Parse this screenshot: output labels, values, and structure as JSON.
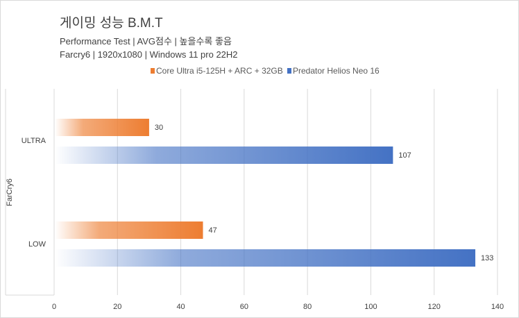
{
  "chart_data": {
    "type": "bar",
    "orientation": "horizontal",
    "title": "게이밍 성능 B.M.T",
    "subtitles": [
      "Performance Test | AVG점수 | 높을수록 좋음",
      "Farcry6 | 1920x1080 | Windows 11 pro 22H2"
    ],
    "group_label": "FarCry6",
    "categories": [
      "ULTRA",
      "LOW"
    ],
    "series": [
      {
        "name": "Core Ultra i5-125H + ARC + 32GB",
        "color": "#ed7d31",
        "values": [
          30,
          47
        ]
      },
      {
        "name": "Predator Helios Neo 16",
        "color": "#4472c4",
        "values": [
          107,
          133
        ]
      }
    ],
    "xlim": [
      0,
      140
    ],
    "xticks": [
      "0",
      "20",
      "40",
      "60",
      "80",
      "100",
      "120",
      "140"
    ],
    "grid": true,
    "legend": "top-right"
  }
}
